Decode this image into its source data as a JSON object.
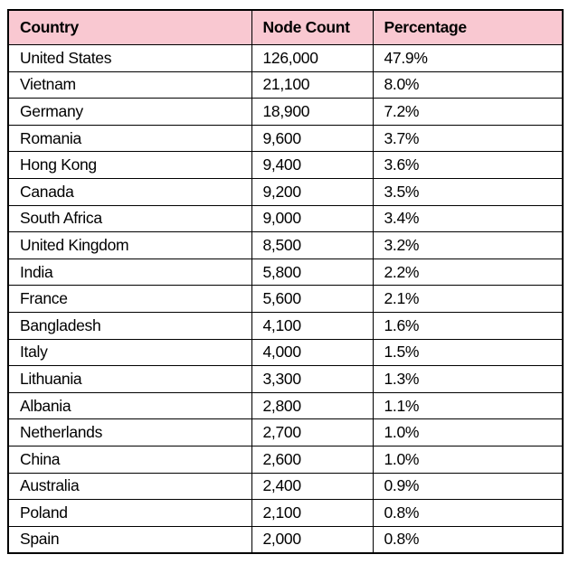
{
  "chart_data": {
    "type": "table",
    "title": "",
    "columns": [
      "Country",
      "Node Count",
      "Percentage"
    ],
    "rows": [
      [
        "United States",
        "126,000",
        "47.9%"
      ],
      [
        "Vietnam",
        "21,100",
        "8.0%"
      ],
      [
        "Germany",
        "18,900",
        "7.2%"
      ],
      [
        "Romania",
        "9,600",
        "3.7%"
      ],
      [
        "Hong Kong",
        "9,400",
        "3.6%"
      ],
      [
        "Canada",
        "9,200",
        "3.5%"
      ],
      [
        "South Africa",
        "9,000",
        "3.4%"
      ],
      [
        "United Kingdom",
        "8,500",
        "3.2%"
      ],
      [
        "India",
        "5,800",
        "2.2%"
      ],
      [
        "France",
        "5,600",
        "2.1%"
      ],
      [
        "Bangladesh",
        "4,100",
        "1.6%"
      ],
      [
        "Italy",
        "4,000",
        "1.5%"
      ],
      [
        "Lithuania",
        "3,300",
        "1.3%"
      ],
      [
        "Albania",
        "2,800",
        "1.1%"
      ],
      [
        "Netherlands",
        "2,700",
        "1.0%"
      ],
      [
        "China",
        "2,600",
        "1.0%"
      ],
      [
        "Australia",
        "2,400",
        "0.9%"
      ],
      [
        "Poland",
        "2,100",
        "0.8%"
      ],
      [
        "Spain",
        "2,000",
        "0.8%"
      ]
    ],
    "node_counts": [
      126000,
      21100,
      18900,
      9600,
      9400,
      9200,
      9000,
      8500,
      5800,
      5600,
      4100,
      4000,
      3300,
      2800,
      2700,
      2600,
      2400,
      2100,
      2000
    ],
    "percentages": [
      47.9,
      8.0,
      7.2,
      3.7,
      3.6,
      3.5,
      3.4,
      3.2,
      2.2,
      2.1,
      1.6,
      1.5,
      1.3,
      1.1,
      1.0,
      1.0,
      0.9,
      0.8,
      0.8
    ],
    "colors": {
      "header_background": "#f9c8d1",
      "border": "#000000",
      "text": "#000000",
      "row_background": "#ffffff"
    }
  }
}
